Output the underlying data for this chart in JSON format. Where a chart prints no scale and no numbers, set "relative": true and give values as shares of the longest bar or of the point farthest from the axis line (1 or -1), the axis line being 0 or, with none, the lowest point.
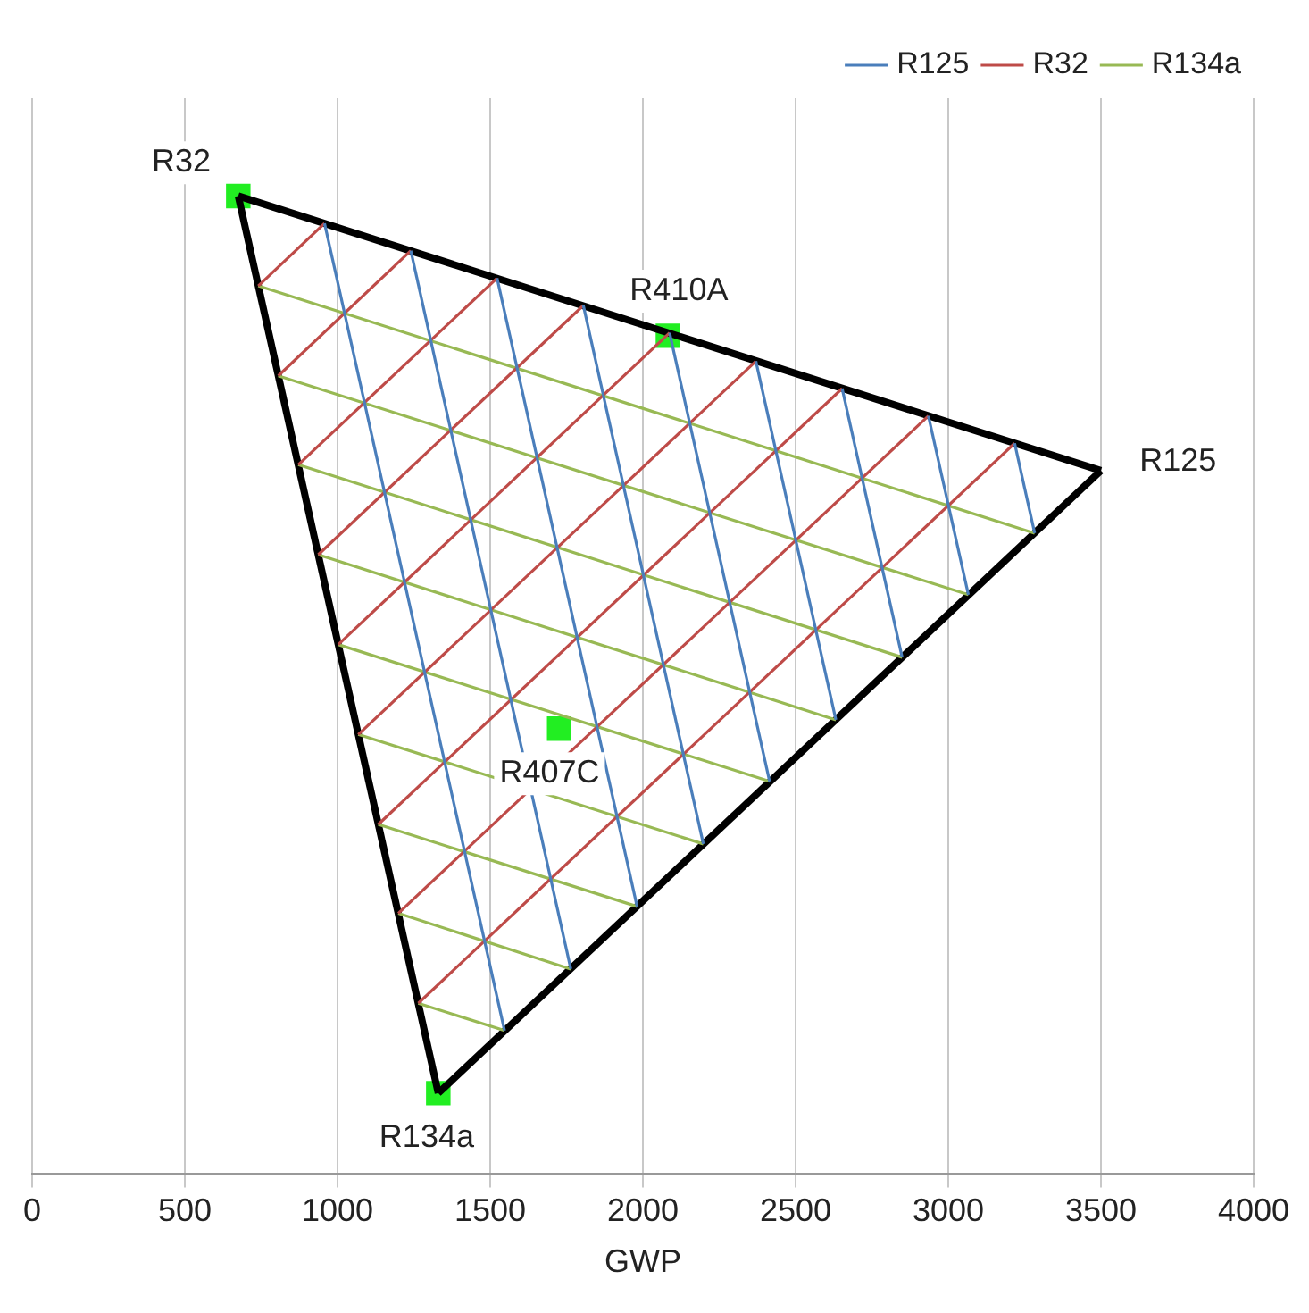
{
  "chart_data": {
    "type": "line",
    "relative": true,
    "xlabel": "GWP",
    "xlim": [
      0,
      4000
    ],
    "xticks": [
      0,
      500,
      1000,
      1500,
      2000,
      2500,
      3000,
      3500,
      4000
    ],
    "grid": "x",
    "legend": "top right",
    "series": [
      {
        "name": "R125",
        "color": "#4a7ebb",
        "x": [
          957.5,
          1547
        ],
        "values": [
          0.972,
          0.146
        ]
      },
      {
        "color": "#4a7ebb",
        "x": [
          1240,
          1764
        ],
        "values": [
          0.944,
          0.209
        ]
      },
      {
        "color": "#4a7ebb",
        "x": [
          1522.5,
          1981
        ],
        "values": [
          0.916,
          0.273
        ]
      },
      {
        "color": "#4a7ebb",
        "x": [
          1805,
          2198
        ],
        "values": [
          0.888,
          0.337
        ]
      },
      {
        "color": "#4a7ebb",
        "x": [
          2087.5,
          2415
        ],
        "values": [
          0.86,
          0.401
        ]
      },
      {
        "color": "#4a7ebb",
        "x": [
          2370,
          2632
        ],
        "values": [
          0.831,
          0.464
        ]
      },
      {
        "color": "#4a7ebb",
        "x": [
          2652.5,
          2849
        ],
        "values": [
          0.803,
          0.528
        ]
      },
      {
        "color": "#4a7ebb",
        "x": [
          2935,
          3066
        ],
        "values": [
          0.775,
          0.592
        ]
      },
      {
        "color": "#4a7ebb",
        "x": [
          3217.5,
          3283
        ],
        "values": [
          0.747,
          0.655
        ]
      },
      {
        "name": "R32",
        "color": "#be4b48",
        "x": [
          1264.5,
          3217.5
        ],
        "values": [
          0.174,
          0.747
        ]
      },
      {
        "color": "#be4b48",
        "x": [
          1199,
          2935
        ],
        "values": [
          0.266,
          0.775
        ]
      },
      {
        "color": "#be4b48",
        "x": [
          1133.5,
          2652.5
        ],
        "values": [
          0.357,
          0.803
        ]
      },
      {
        "color": "#be4b48",
        "x": [
          1068,
          2370
        ],
        "values": [
          0.449,
          0.831
        ]
      },
      {
        "color": "#be4b48",
        "x": [
          1002.5,
          2087.5
        ],
        "values": [
          0.541,
          0.86
        ]
      },
      {
        "color": "#be4b48",
        "x": [
          937,
          1805
        ],
        "values": [
          0.633,
          0.888
        ]
      },
      {
        "color": "#be4b48",
        "x": [
          871.5,
          1522.5
        ],
        "values": [
          0.725,
          0.916
        ]
      },
      {
        "color": "#be4b48",
        "x": [
          806,
          1240
        ],
        "values": [
          0.816,
          0.944
        ]
      },
      {
        "color": "#be4b48",
        "x": [
          740.5,
          957.5
        ],
        "values": [
          0.908,
          0.972
        ]
      },
      {
        "name": "R134a",
        "color": "#98b954",
        "x": [
          740.5,
          3283
        ],
        "values": [
          0.908,
          0.655
        ]
      },
      {
        "color": "#98b954",
        "x": [
          806,
          3066
        ],
        "values": [
          0.816,
          0.592
        ]
      },
      {
        "color": "#98b954",
        "x": [
          871.5,
          2849
        ],
        "values": [
          0.725,
          0.528
        ]
      },
      {
        "color": "#98b954",
        "x": [
          937,
          2632
        ],
        "values": [
          0.633,
          0.464
        ]
      },
      {
        "color": "#98b954",
        "x": [
          1002.5,
          2415
        ],
        "values": [
          0.541,
          0.401
        ]
      },
      {
        "color": "#98b954",
        "x": [
          1068,
          2198
        ],
        "values": [
          0.449,
          0.337
        ]
      },
      {
        "color": "#98b954",
        "x": [
          1133.5,
          1981
        ],
        "values": [
          0.357,
          0.273
        ]
      },
      {
        "color": "#98b954",
        "x": [
          1199,
          1764
        ],
        "values": [
          0.266,
          0.209
        ]
      },
      {
        "color": "#98b954",
        "x": [
          1264.5,
          1547
        ],
        "values": [
          0.174,
          0.146
        ]
      },
      {
        "color": "#000000",
        "x": [
          675,
          3500
        ],
        "values": [
          1.0,
          0.719
        ]
      },
      {
        "color": "#000000",
        "x": [
          1330,
          3500
        ],
        "values": [
          0.082,
          0.719
        ]
      },
      {
        "color": "#000000",
        "x": [
          675,
          1330
        ],
        "values": [
          1.0,
          0.082
        ]
      },
      {
        "type": "scatter",
        "marker": "square",
        "color": "#22ee22",
        "x": [
          675,
          2082,
          1726,
          1330
        ],
        "values": [
          1.0,
          0.857,
          0.455,
          0.082
        ]
      }
    ],
    "annotations": [
      {
        "text": "R32",
        "x": 675,
        "y": 1.0
      },
      {
        "text": "R410A",
        "x": 2082,
        "y": 0.857
      },
      {
        "text": "R125",
        "x": 3500,
        "y": 0.719
      },
      {
        "text": "R407C",
        "x": 1726,
        "y": 0.455
      },
      {
        "text": "R134a",
        "x": 1330,
        "y": 0.082
      }
    ]
  }
}
